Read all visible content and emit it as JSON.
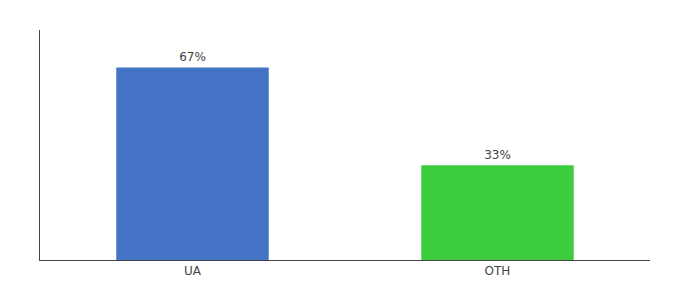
{
  "chart_data": {
    "type": "bar",
    "categories": [
      "UA",
      "OTH"
    ],
    "values": [
      67,
      33
    ],
    "value_labels": [
      "67%",
      "33%"
    ],
    "data_labels": true,
    "colors": [
      "#4472c4",
      "#3dcc3d"
    ],
    "ylim": [
      0,
      80
    ],
    "tick_labels": "x",
    "grid": false
  }
}
